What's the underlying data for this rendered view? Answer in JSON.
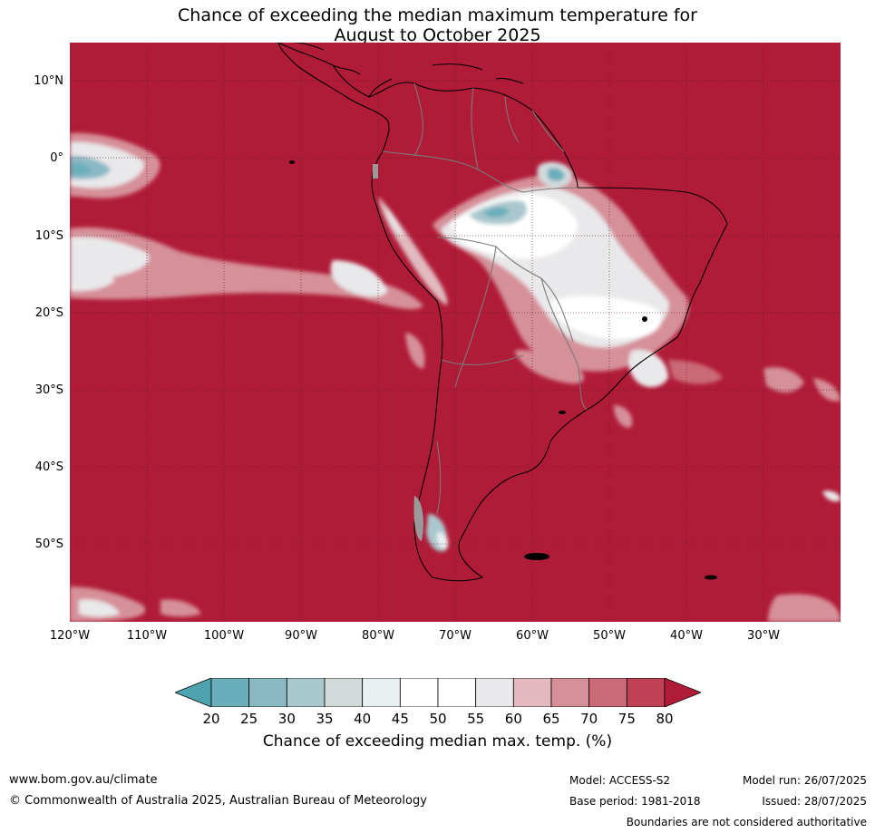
{
  "title": {
    "line1": "Chance of exceeding the median maximum temperature for",
    "line2": "August to October 2025"
  },
  "map": {
    "lon_range": [
      -120,
      -20
    ],
    "lat_range": [
      -60,
      15
    ],
    "base_color": "#b01c38",
    "grid": true
  },
  "axes": {
    "lat_ticks": [
      "10°N",
      "0°",
      "10°S",
      "20°S",
      "30°S",
      "40°S",
      "50°S"
    ],
    "lon_ticks": [
      "120°W",
      "110°W",
      "100°W",
      "90°W",
      "80°W",
      "70°W",
      "60°W",
      "50°W",
      "40°W",
      "30°W"
    ]
  },
  "colorbar": {
    "ticks": [
      "20",
      "25",
      "30",
      "35",
      "40",
      "45",
      "50",
      "55",
      "60",
      "65",
      "70",
      "75",
      "80"
    ],
    "colors": [
      "#4fa3ae",
      "#6aadbb",
      "#8bb8c5",
      "#a9c8cd",
      "#d2dadb",
      "#e9f0f2",
      "#ffffff",
      "#ffffff",
      "#e9e8ea",
      "#e1b9bf",
      "#d69098",
      "#ca6a76",
      "#be4253",
      "#b01c38"
    ],
    "label": "Chance of exceeding median max. temp. (%)"
  },
  "footer": {
    "url": "www.bom.gov.au/climate",
    "copyright": "© Commonwealth of Australia 2025, Australian Bureau of Meteorology",
    "model": "Model: ACCESS-S2",
    "base_period": "Base period: 1981-2018",
    "model_run": "Model run: 26/07/2025",
    "issued": "Issued: 28/07/2025",
    "disclaimer": "Boundaries are not considered authoritative"
  }
}
